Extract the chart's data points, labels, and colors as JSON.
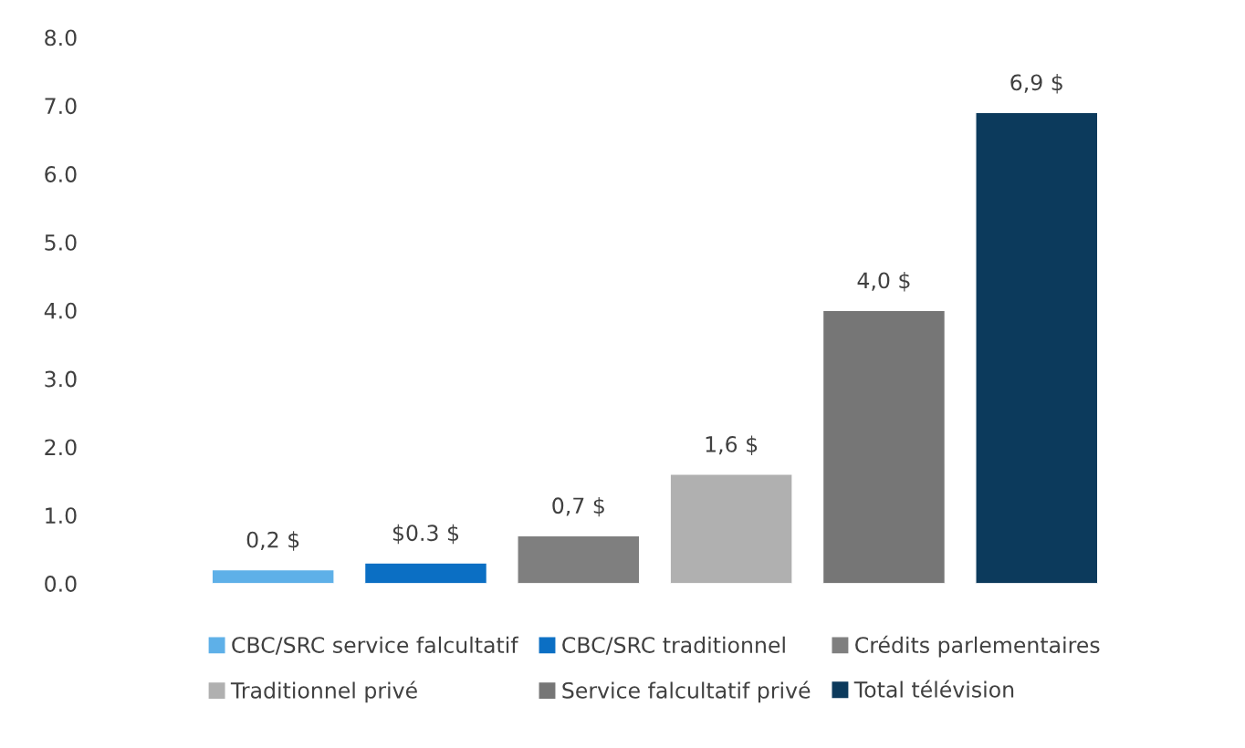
{
  "chart_data": {
    "type": "bar",
    "categories": [
      null
    ],
    "series": [
      {
        "name": "CBC/SRC service falcultatif",
        "color": "#5eb0e8",
        "values": [
          0.2
        ],
        "value_labels": [
          "0,2 $"
        ]
      },
      {
        "name": "CBC/SRC traditionnel",
        "color": "#0b6fc4",
        "values": [
          0.3
        ],
        "value_labels": [
          "$0.3 $"
        ]
      },
      {
        "name": "Crédits parlementaires",
        "color": "#7f7f7f",
        "values": [
          0.7
        ],
        "value_labels": [
          "0,7 $"
        ]
      },
      {
        "name": "Traditionnel privé",
        "color": "#b0b0b0",
        "values": [
          1.6
        ],
        "value_labels": [
          "1,6 $"
        ]
      },
      {
        "name": "Service falcultatif privé",
        "color": "#767676",
        "values": [
          4.0
        ],
        "value_labels": [
          "4,0 $"
        ]
      },
      {
        "name": "Total télévision",
        "color": "#0c3a5c",
        "values": [
          6.9
        ],
        "value_labels": [
          "6,9 $"
        ]
      }
    ],
    "ylim": [
      0,
      8
    ],
    "yticks": [
      {
        "value": 0,
        "label": "0.0"
      },
      {
        "value": 1,
        "label": "1.0"
      },
      {
        "value": 2,
        "label": "2.0"
      },
      {
        "value": 3,
        "label": "3.0"
      },
      {
        "value": 4,
        "label": "4.0"
      },
      {
        "value": 5,
        "label": "5.0"
      },
      {
        "value": 6,
        "label": "6.0"
      },
      {
        "value": 7,
        "label": "7.0"
      },
      {
        "value": 8,
        "label": "8.0"
      }
    ],
    "grid": false,
    "legend": "bottom"
  }
}
